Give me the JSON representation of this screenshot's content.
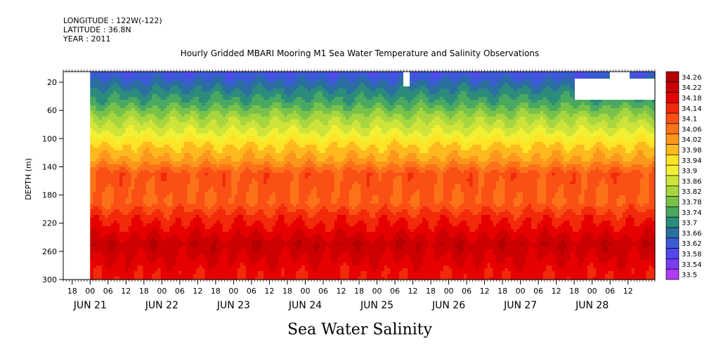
{
  "header": {
    "longitude": "LONGITUDE : 122W(-122)",
    "latitude": "LATITUDE : 36.8N",
    "year": "YEAR : 2011"
  },
  "chart_data": {
    "type": "heatmap",
    "title": "Hourly Gridded MBARI Mooring M1 Sea Water Temperature and Salinity Observations",
    "xlabel": "Sea Water Salinity",
    "ylabel": "DEPTH (m)",
    "x_time_range": [
      "2011-06-20T15:00",
      "2011-06-28T21:00"
    ],
    "data_time_range": [
      "2011-06-21T00:00",
      "2011-06-28T21:00"
    ],
    "x_hour_ticks": [
      "18",
      "00",
      "06",
      "12",
      "18",
      "00",
      "06",
      "12",
      "18",
      "00",
      "06",
      "12",
      "18",
      "00",
      "06",
      "12",
      "18",
      "00",
      "06",
      "12",
      "18",
      "00",
      "06",
      "12",
      "18",
      "00",
      "06",
      "12",
      "18",
      "00",
      "06",
      "12"
    ],
    "x_hour_tick_times": [
      "2011-06-20T18:00",
      "2011-06-21T00:00",
      "2011-06-21T06:00",
      "2011-06-21T12:00",
      "2011-06-21T18:00",
      "2011-06-22T00:00",
      "2011-06-22T06:00",
      "2011-06-22T12:00",
      "2011-06-22T18:00",
      "2011-06-23T00:00",
      "2011-06-23T06:00",
      "2011-06-23T12:00",
      "2011-06-23T18:00",
      "2011-06-24T00:00",
      "2011-06-24T06:00",
      "2011-06-24T12:00",
      "2011-06-24T18:00",
      "2011-06-25T00:00",
      "2011-06-25T06:00",
      "2011-06-25T12:00",
      "2011-06-25T18:00",
      "2011-06-26T00:00",
      "2011-06-26T06:00",
      "2011-06-26T12:00",
      "2011-06-26T18:00",
      "2011-06-27T00:00",
      "2011-06-27T06:00",
      "2011-06-27T12:00",
      "2011-06-27T18:00",
      "2011-06-28T00:00",
      "2011-06-28T06:00",
      "2011-06-28T12:00"
    ],
    "x_day_labels": [
      "JUN 21",
      "JUN 22",
      "JUN 23",
      "JUN 24",
      "JUN 25",
      "JUN 26",
      "JUN 27",
      "JUN 28"
    ],
    "x_day_label_times": [
      "2011-06-21T00:00",
      "2011-06-22T00:00",
      "2011-06-23T00:00",
      "2011-06-24T00:00",
      "2011-06-25T00:00",
      "2011-06-26T00:00",
      "2011-06-27T00:00",
      "2011-06-28T00:00"
    ],
    "y_ticks": [
      20,
      60,
      100,
      140,
      180,
      220,
      260,
      300
    ],
    "ylim": [
      300,
      5
    ],
    "y_reversed": true,
    "depth_levels": [
      10,
      30,
      50,
      70,
      90,
      110,
      130,
      150,
      170,
      190,
      210,
      230,
      250,
      270,
      290
    ],
    "salinity_profile": [
      33.63,
      33.7,
      33.76,
      33.84,
      33.9,
      33.98,
      34.03,
      34.12,
      34.11,
      34.1,
      34.16,
      34.2,
      34.25,
      34.22,
      34.19
    ],
    "colorbar": {
      "levels": [
        "34.26",
        "34.22",
        "34.18",
        "34.14",
        "34.1",
        "34.06",
        "34.02",
        "33.98",
        "33.94",
        "33.9",
        "33.86",
        "33.82",
        "33.78",
        "33.74",
        "33.7",
        "33.66",
        "33.62",
        "33.58",
        "33.54",
        "33.5"
      ],
      "colors": [
        "#b30000",
        "#cc0000",
        "#e60000",
        "#f22a0a",
        "#fa5014",
        "#fc7219",
        "#fd961c",
        "#fdb91e",
        "#fee326",
        "#f2f033",
        "#cfe43a",
        "#a8d63f",
        "#79c24a",
        "#4aa961",
        "#2c8c7c",
        "#2b6fa0",
        "#3b5bd4",
        "#5048ea",
        "#7a3cf0",
        "#b03cf5"
      ]
    },
    "grid": false
  }
}
